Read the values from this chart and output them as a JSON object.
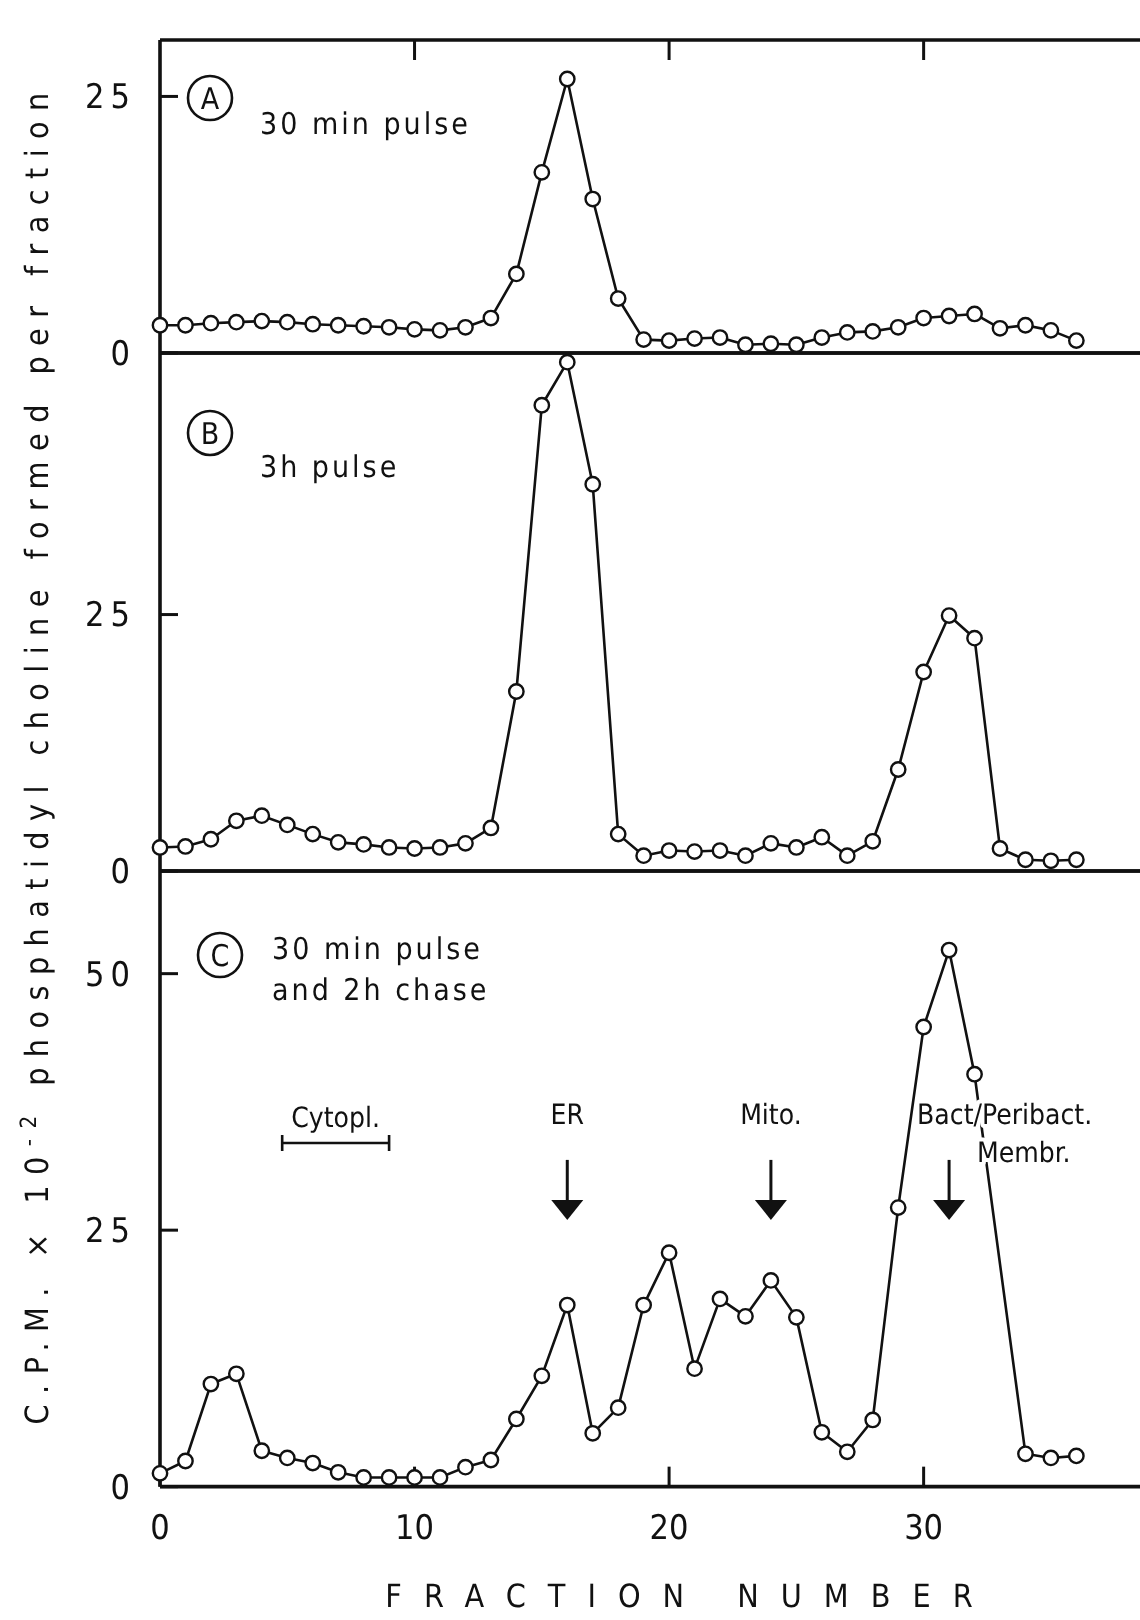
{
  "chart_data": [
    {
      "type": "line",
      "x": [
        0,
        1,
        2,
        3,
        4,
        5,
        6,
        7,
        8,
        9,
        10,
        11,
        12,
        13,
        14,
        15,
        16,
        17,
        18,
        19,
        20,
        21,
        22,
        23,
        24,
        25,
        26,
        27,
        28,
        29,
        30,
        31,
        32,
        33,
        34,
        35,
        36
      ],
      "series": [
        {
          "color": "#111111",
          "values": [
            2.7,
            2.7,
            2.9,
            3.0,
            3.1,
            3.0,
            2.8,
            2.7,
            2.6,
            2.5,
            2.3,
            2.2,
            2.5,
            3.4,
            7.7,
            17.6,
            26.7,
            15.0,
            5.3,
            1.3,
            1.2,
            1.4,
            1.5,
            0.8,
            0.9,
            0.8,
            1.5,
            2.0,
            2.1,
            2.5,
            3.4,
            3.6,
            3.8,
            2.4,
            2.7,
            2.2,
            1.2
          ]
        }
      ],
      "xlim": [
        0,
        38.5
      ],
      "xticks": [
        {
          "value": 10,
          "label": null
        },
        {
          "value": 20,
          "label": null
        },
        {
          "value": 30,
          "label": null
        }
      ],
      "ylim": [
        0,
        30.5
      ],
      "yticks": [
        0,
        25
      ],
      "tick_labels": "y",
      "marker": "circle",
      "line_style": "solid",
      "grid": false,
      "annotations": [
        "A",
        "30 min pulse"
      ]
    },
    {
      "type": "line",
      "x": [
        0,
        1,
        2,
        3,
        4,
        5,
        6,
        7,
        8,
        9,
        10,
        11,
        12,
        13,
        14,
        15,
        16,
        17,
        18,
        19,
        20,
        21,
        22,
        23,
        24,
        25,
        26,
        27,
        28,
        29,
        30,
        31,
        32,
        33,
        34,
        35,
        36
      ],
      "series": [
        {
          "color": "#111111",
          "values": [
            2.3,
            2.4,
            3.1,
            4.9,
            5.4,
            4.5,
            3.6,
            2.8,
            2.6,
            2.3,
            2.2,
            2.3,
            2.7,
            4.2,
            17.5,
            45.4,
            49.6,
            37.7,
            3.6,
            1.5,
            2.0,
            1.9,
            2.0,
            1.5,
            2.7,
            2.3,
            3.3,
            1.5,
            2.9,
            9.9,
            19.4,
            24.9,
            22.7,
            2.2,
            1.1,
            1.0,
            1.1
          ]
        }
      ],
      "xlim": [
        0,
        38.5
      ],
      "ylim": [
        0,
        50.5
      ],
      "yticks": [
        0,
        25
      ],
      "tick_labels": "y",
      "marker": "circle",
      "line_style": "solid",
      "grid": false,
      "ylabel": "C.P.M. × 10$^{-2}$ phosphatidyl choline formed per fraction",
      "annotations": [
        "B",
        "3h pulse"
      ]
    },
    {
      "type": "line",
      "x": [
        0,
        1,
        2,
        3,
        4,
        5,
        6,
        7,
        8,
        9,
        10,
        11,
        12,
        13,
        14,
        15,
        16,
        17,
        18,
        19,
        20,
        21,
        22,
        23,
        24,
        25,
        26,
        27,
        28,
        29,
        30,
        31,
        32,
        34,
        35,
        36
      ],
      "series": [
        {
          "color": "#111111",
          "values": [
            1.3,
            2.5,
            10.0,
            11.0,
            3.5,
            2.8,
            2.3,
            1.4,
            0.9,
            0.9,
            0.9,
            0.9,
            1.9,
            2.6,
            6.6,
            10.8,
            17.7,
            5.2,
            7.7,
            17.7,
            22.8,
            11.5,
            18.3,
            16.6,
            20.1,
            16.5,
            5.3,
            3.4,
            6.5,
            27.2,
            44.8,
            52.3,
            40.2,
            3.2,
            2.8,
            3.0
          ]
        }
      ],
      "xlim": [
        0,
        38.5
      ],
      "xticks": [
        0,
        10,
        20,
        30
      ],
      "ylim": [
        0,
        60
      ],
      "yticks": [
        0,
        25,
        50
      ],
      "marker": "circle",
      "line_style": "solid",
      "grid": false,
      "xlabel": "FRACTION NUMBER",
      "annotations": [
        "C",
        "30 min pulse and 2h chase",
        "Cytopl.",
        "ER",
        "Mito.",
        "Bact/Peribact. Membr."
      ]
    }
  ]
}
